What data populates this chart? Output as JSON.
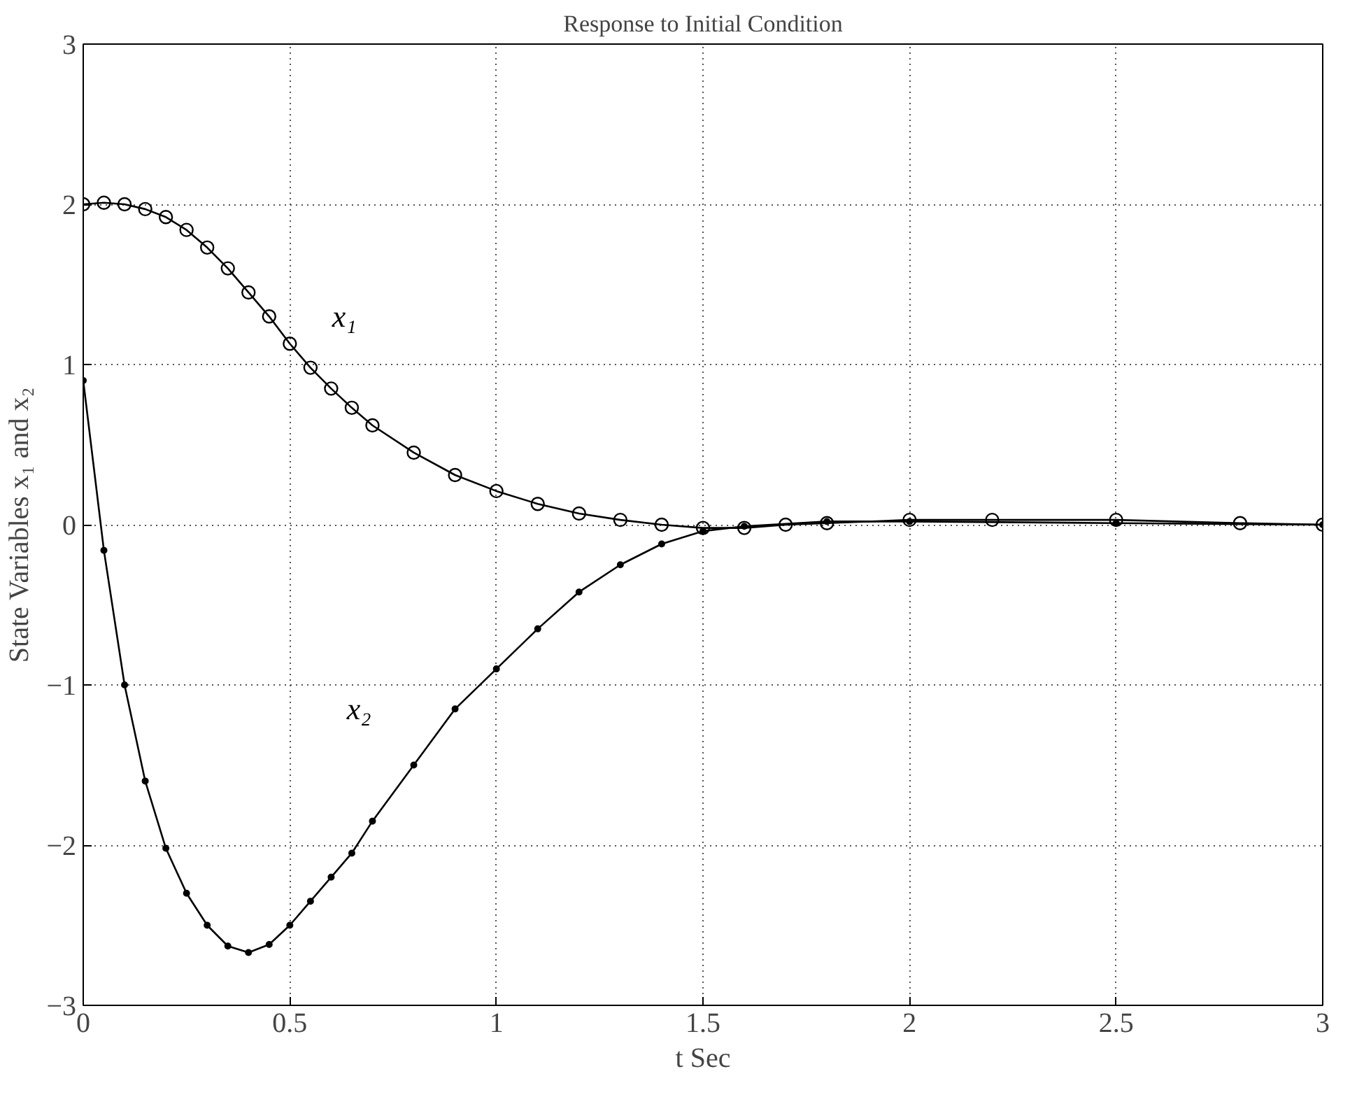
{
  "chart_data": {
    "type": "line",
    "title": "Response to Initial Condition",
    "xlabel": "t Sec",
    "ylabel": "State Variables x₁ and x₂",
    "xlim": [
      0,
      3
    ],
    "ylim": [
      -3,
      3
    ],
    "xticks": [
      0,
      0.5,
      1,
      1.5,
      2,
      2.5,
      3
    ],
    "yticks": [
      -3,
      -2,
      -1,
      0,
      1,
      2,
      3
    ],
    "grid": true,
    "line_style": "solid",
    "series": [
      {
        "name": "x₁",
        "color": "#000000",
        "marker": "circle",
        "x": [
          0,
          0.05,
          0.1,
          0.15,
          0.2,
          0.25,
          0.3,
          0.35,
          0.4,
          0.45,
          0.5,
          0.55,
          0.6,
          0.65,
          0.7,
          0.8,
          0.9,
          1.0,
          1.1,
          1.2,
          1.3,
          1.4,
          1.5,
          1.6,
          1.7,
          1.8,
          2.0,
          2.2,
          2.5,
          2.8,
          3.0
        ],
        "values": [
          2.0,
          2.01,
          2.0,
          1.97,
          1.92,
          1.84,
          1.73,
          1.6,
          1.45,
          1.3,
          1.13,
          0.98,
          0.85,
          0.73,
          0.62,
          0.45,
          0.31,
          0.21,
          0.13,
          0.07,
          0.03,
          0.0,
          -0.02,
          -0.02,
          0.0,
          0.01,
          0.03,
          0.03,
          0.03,
          0.01,
          0.0
        ]
      },
      {
        "name": "x₂",
        "color": "#000000",
        "marker": "dot",
        "x": [
          0,
          0.05,
          0.1,
          0.15,
          0.2,
          0.25,
          0.3,
          0.35,
          0.4,
          0.45,
          0.5,
          0.55,
          0.6,
          0.65,
          0.7,
          0.8,
          0.9,
          1.0,
          1.1,
          1.2,
          1.3,
          1.4,
          1.5,
          1.6,
          1.8,
          2.0,
          2.5,
          3.0
        ],
        "values": [
          0.9,
          -0.16,
          -1.0,
          -1.6,
          -2.02,
          -2.3,
          -2.5,
          -2.63,
          -2.67,
          -2.62,
          -2.5,
          -2.35,
          -2.2,
          -2.05,
          -1.85,
          -1.5,
          -1.15,
          -0.9,
          -0.65,
          -0.42,
          -0.25,
          -0.12,
          -0.04,
          -0.01,
          0.02,
          0.02,
          0.01,
          0.0
        ]
      }
    ]
  }
}
